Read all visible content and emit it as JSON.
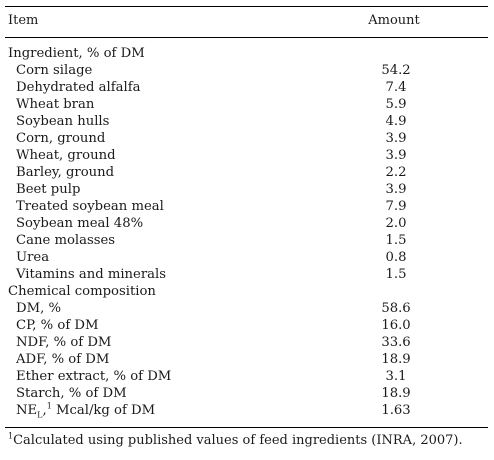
{
  "table": {
    "header": {
      "item": "Item",
      "amount": "Amount"
    },
    "rows": [
      {
        "type": "section",
        "label": "Ingredient, % of DM",
        "value": ""
      },
      {
        "type": "item",
        "label": "Corn silage",
        "value": "54.2"
      },
      {
        "type": "item",
        "label": "Dehydrated alfalfa",
        "value": "7.4"
      },
      {
        "type": "item",
        "label": "Wheat bran",
        "value": "5.9"
      },
      {
        "type": "item",
        "label": "Soybean hulls",
        "value": "4.9"
      },
      {
        "type": "item",
        "label": "Corn, ground",
        "value": "3.9"
      },
      {
        "type": "item",
        "label": "Wheat, ground",
        "value": "3.9"
      },
      {
        "type": "item",
        "label": "Barley, ground",
        "value": "2.2"
      },
      {
        "type": "item",
        "label": "Beet pulp",
        "value": "3.9"
      },
      {
        "type": "item",
        "label": "Treated soybean meal",
        "value": "7.9"
      },
      {
        "type": "item",
        "label": "Soybean meal 48%",
        "value": "2.0"
      },
      {
        "type": "item",
        "label": "Cane molasses",
        "value": "1.5"
      },
      {
        "type": "item",
        "label": "Urea",
        "value": "0.8"
      },
      {
        "type": "item",
        "label": "Vitamins and minerals",
        "value": "1.5"
      },
      {
        "type": "section",
        "label": "Chemical composition",
        "value": ""
      },
      {
        "type": "item",
        "label": "DM, %",
        "value": "58.6"
      },
      {
        "type": "item",
        "label": "CP, % of DM",
        "value": "16.0"
      },
      {
        "type": "item",
        "label": "NDF, % of DM",
        "value": "33.6"
      },
      {
        "type": "item",
        "label": "ADF, % of DM",
        "value": "18.9"
      },
      {
        "type": "item",
        "label": "Ether extract, % of DM",
        "value": "3.1"
      },
      {
        "type": "item",
        "label": "Starch, % of DM",
        "value": "18.9"
      },
      {
        "type": "item",
        "label": "NE",
        "sub": "L",
        "sup": "1",
        "rest": " Mcal/kg of DM",
        "value": "1.63"
      }
    ]
  },
  "footnote": {
    "mark": "1",
    "text": "Calculated using published values of feed ingredients (INRA, 2007)."
  }
}
